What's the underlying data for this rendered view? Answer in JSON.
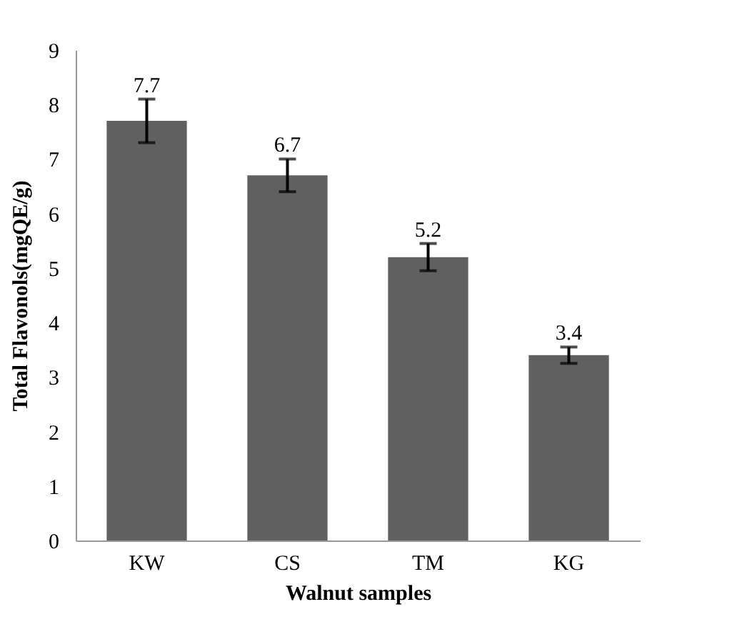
{
  "chart_data": {
    "type": "bar",
    "xlabel": "Walnut samples",
    "ylabel": "Total Flavonols(mgQE/g)",
    "categories": [
      "KW",
      "CS",
      "TM",
      "KG"
    ],
    "values": [
      7.7,
      6.7,
      5.2,
      3.4
    ],
    "errors": [
      0.4,
      0.3,
      0.25,
      0.15
    ],
    "color": "#606060",
    "data_labels": true,
    "grid": false,
    "ylim": [
      0,
      9
    ],
    "yticks": [
      0,
      1,
      2,
      3,
      4,
      5,
      6,
      7,
      8,
      9
    ]
  }
}
